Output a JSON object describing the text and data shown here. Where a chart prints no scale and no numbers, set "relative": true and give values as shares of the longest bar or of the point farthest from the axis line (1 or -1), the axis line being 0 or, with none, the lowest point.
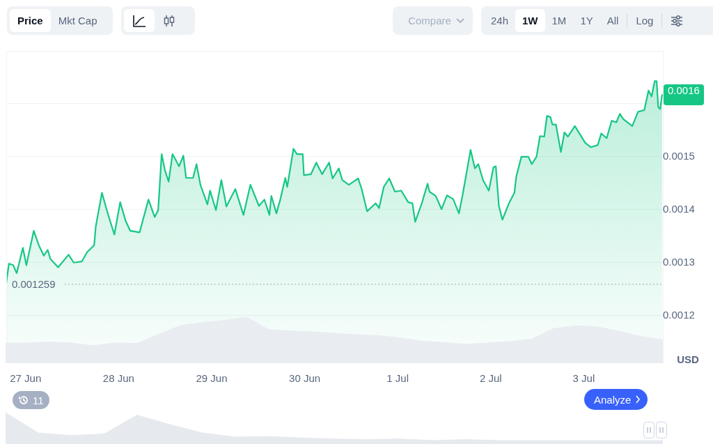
{
  "chart_data": [
    {
      "type": "area",
      "marker": "none",
      "grid": "y",
      "ylabel": "USD",
      "x": [
        "--06-26T19:00",
        "--06-26T19:42",
        "--06-26T20:48",
        "--06-26T21:42",
        "--06-26T23:18",
        "--06-27T00:12",
        "--06-27T02:06",
        "--06-27T03:24",
        "--06-27T04:42",
        "--06-27T05:42",
        "--06-27T06:24",
        "--06-27T08:24",
        "--06-27T11:06",
        "--06-27T12:24",
        "--06-27T14:30",
        "--06-27T15:54",
        "--06-27T17:42",
        "--06-27T18:06",
        "--06-27T19:42",
        "--06-27T20:48",
        "--06-27T21:42",
        "--06-27T22:54",
        "--06-28T00:24",
        "--06-28T01:48",
        "--06-28T03:00",
        "--06-28T05:24",
        "--06-28T07:42",
        "--06-28T09:18",
        "--06-28T10:12",
        "--06-28T11:06",
        "--06-28T12:00",
        "--06-28T12:54",
        "--06-28T13:54",
        "--06-28T15:36",
        "--06-28T16:42",
        "--06-28T17:24",
        "--06-28T19:12",
        "--06-28T20:06",
        "--06-28T21:06",
        "--06-28T22:54",
        "--06-28T23:36",
        "--06-29T01:06",
        "--06-29T02:30",
        "--06-29T03:48",
        "--06-29T06:06",
        "--06-29T08:12",
        "--06-29T10:00",
        "--06-29T12:12",
        "--06-29T13:36",
        "--06-29T14:54",
        "--06-29T15:24",
        "--06-29T16:42",
        "--06-29T17:42",
        "--06-29T19:00",
        "--06-29T19:30",
        "--06-29T21:06",
        "--06-29T22:00",
        "--06-29T23:30",
        "--06-29T23:48",
        "--06-30T01:36",
        "--06-30T03:00",
        "--06-30T04:30",
        "--06-30T06:18",
        "--06-30T07:12",
        "--06-30T08:48",
        "--06-30T09:42",
        "--06-30T11:24",
        "--06-30T13:48",
        "--06-30T14:42",
        "--06-30T16:06",
        "--06-30T18:18",
        "--06-30T19:12",
        "--06-30T20:24",
        "--06-30T21:48",
        "--06-30T23:18",
        "--07-01T00:54",
        "--07-01T02:42",
        "--07-01T03:48",
        "--07-01T04:30",
        "--07-01T06:18",
        "--07-01T07:42",
        "--07-01T08:12",
        "--07-01T09:48",
        "--07-01T11:18",
        "--07-01T12:42",
        "--07-01T14:18",
        "--07-01T15:48",
        "--07-01T16:42",
        "--07-01T18:48",
        "--07-01T19:54",
        "--07-01T20:48",
        "--07-01T22:00",
        "--07-01T23:30",
        "--07-02T00:42",
        "--07-02T01:18",
        "--07-02T02:06",
        "--07-02T03:00",
        "--07-02T04:42",
        "--07-02T06:06",
        "--07-02T06:36",
        "--07-02T07:54",
        "--07-02T09:42",
        "--07-02T10:36",
        "--07-02T11:48",
        "--07-02T12:42",
        "--07-02T13:48",
        "--07-02T14:30",
        "--07-02T15:24",
        "--07-02T15:54",
        "--07-02T16:48",
        "--07-02T18:06",
        "--07-02T19:00",
        "--07-02T19:54",
        "--07-02T21:42",
        "--07-02T22:42",
        "--07-03T00:24",
        "--07-03T01:48",
        "--07-03T03:36",
        "--07-03T04:30",
        "--07-03T05:54",
        "--07-03T07:12",
        "--07-03T08:24",
        "--07-03T09:18",
        "--07-03T10:12",
        "--07-03T12:30",
        "--07-03T14:00",
        "--07-03T15:36",
        "--07-03T16:42",
        "--07-03T17:30",
        "--07-03T18:18",
        "--07-03T18:48",
        "--07-03T19:12",
        "--07-03T19:42",
        "--07-03T20:12"
      ],
      "series": [
        {
          "color": "#16c784",
          "values": [
            0.001261,
            0.001298,
            0.001295,
            0.00128,
            0.001328,
            0.001295,
            0.00136,
            0.001333,
            0.001313,
            0.001324,
            0.001307,
            0.001291,
            0.001315,
            0.0013,
            0.001302,
            0.00132,
            0.001333,
            0.001368,
            0.001432,
            0.001403,
            0.001381,
            0.001353,
            0.001414,
            0.001379,
            0.00136,
            0.001357,
            0.001419,
            0.001386,
            0.001399,
            0.001505,
            0.001473,
            0.001453,
            0.001505,
            0.001482,
            0.001502,
            0.00146,
            0.00146,
            0.001486,
            0.001447,
            0.00141,
            0.001436,
            0.001399,
            0.001456,
            0.001406,
            0.001439,
            0.00139,
            0.001447,
            0.001407,
            0.001419,
            0.00139,
            0.001426,
            0.001393,
            0.001419,
            0.00146,
            0.001443,
            0.001515,
            0.001505,
            0.001505,
            0.001465,
            0.001467,
            0.001489,
            0.001467,
            0.001489,
            0.001459,
            0.001478,
            0.001456,
            0.001447,
            0.001459,
            0.001439,
            0.001397,
            0.001412,
            0.001403,
            0.001443,
            0.001459,
            0.001434,
            0.001436,
            0.001414,
            0.001412,
            0.001377,
            0.001414,
            0.001449,
            0.001434,
            0.001426,
            0.001401,
            0.001427,
            0.00142,
            0.001393,
            0.001426,
            0.001513,
            0.001478,
            0.001486,
            0.001456,
            0.001436,
            0.00148,
            0.001482,
            0.001407,
            0.001381,
            0.001412,
            0.001432,
            0.001463,
            0.0015,
            0.0015,
            0.001486,
            0.0015,
            0.001539,
            0.001538,
            0.001577,
            0.001575,
            0.001561,
            0.001561,
            0.001509,
            0.001546,
            0.001538,
            0.001558,
            0.001546,
            0.001526,
            0.001518,
            0.001522,
            0.001544,
            0.001535,
            0.001568,
            0.001565,
            0.001581,
            0.001571,
            0.001558,
            0.001585,
            0.001588,
            0.001625,
            0.001614,
            0.001643,
            0.001643,
            0.001594,
            0.00159,
            0.001617
          ]
        }
      ],
      "xlim": [
        "--06-26T19:00",
        "--07-03T20:24"
      ],
      "xticks": [
        {
          "value": "--06-27",
          "label": "27 Jun"
        },
        {
          "value": "--06-28",
          "label": "28 Jun"
        },
        {
          "value": "--06-29",
          "label": "29 Jun"
        },
        {
          "value": "--06-30",
          "label": "30 Jun"
        },
        {
          "value": "--07-01",
          "label": "1 Jul"
        },
        {
          "value": "--07-02",
          "label": "2 Jul"
        },
        {
          "value": "--07-03",
          "label": "3 Jul"
        }
      ],
      "ylim": [
        0.00111,
        0.0017
      ],
      "yticks": [
        {
          "value": 0.0012,
          "label": "0.0012"
        },
        {
          "value": 0.0013,
          "label": "0.0013"
        },
        {
          "value": 0.0014,
          "label": "0.0014"
        },
        {
          "value": 0.0015,
          "label": "0.0015"
        },
        {
          "value": 0.0016,
          "label": null
        }
      ],
      "ref_lines": [
        {
          "axis": "y",
          "value": 0.001259,
          "label": "0.001259",
          "line_style": "dotted",
          "color": "#a6b0c3"
        }
      ],
      "annotations": [
        "Price",
        "Mkt Cap",
        "Compare",
        "24h",
        "1W",
        "1M",
        "1Y",
        "All",
        "Log",
        "11",
        "Analyze",
        {
          "text": "0.0016",
          "x": "--07-03T20:12",
          "y": 0.001617
        }
      ]
    },
    {
      "type": "area",
      "relative": true,
      "marker": "none",
      "tick_labels": false,
      "color": "#e9ecf1",
      "categories": [
        null,
        null,
        null,
        null,
        null,
        null,
        null,
        null,
        null,
        null,
        null,
        null,
        null,
        null,
        null,
        null,
        null,
        null,
        null,
        null,
        null,
        null,
        null,
        null,
        null,
        null,
        null,
        null,
        null,
        null,
        null
      ],
      "values": [
        0.44,
        0.44,
        0.46,
        0.44,
        0.38,
        0.44,
        0.43,
        0.63,
        0.82,
        0.88,
        0.93,
        1,
        0.73,
        0.7,
        0.68,
        0.65,
        0.62,
        0.6,
        0.55,
        0.48,
        0.45,
        0.41,
        0.44,
        0.47,
        0.52,
        0.75,
        0.81,
        0.79,
        0.69,
        0.58,
        0.51
      ]
    },
    {
      "type": "area",
      "relative": true,
      "marker": "none",
      "tick_labels": false,
      "color": "#e6e9ee",
      "categories": [
        null,
        null,
        null,
        null,
        null,
        null,
        null,
        null,
        null,
        null,
        null,
        null,
        null,
        null,
        null,
        null,
        null,
        null,
        null,
        null,
        null
      ],
      "values": [
        1,
        0.35,
        0.27,
        0.32,
        0.92,
        0.62,
        0.35,
        0.22,
        0.24,
        0.19,
        0.16,
        0.14,
        0.16,
        0.11,
        0.14,
        0.11,
        0.11,
        0.11,
        0.11,
        0.11,
        0.11
      ]
    }
  ]
}
